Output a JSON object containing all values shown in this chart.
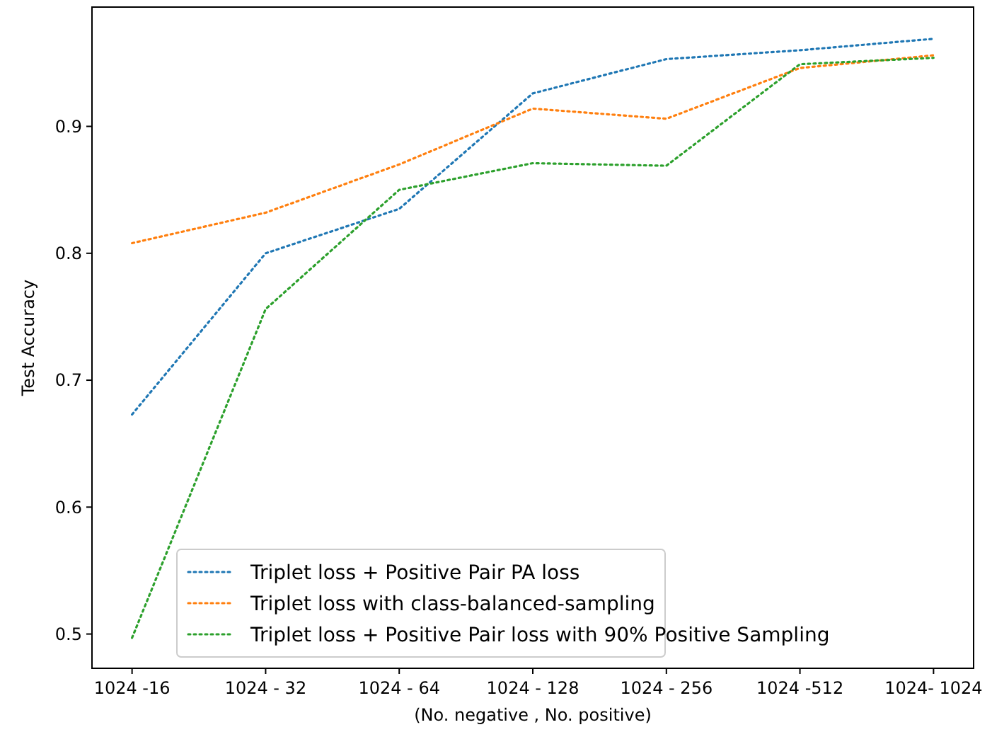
{
  "chart_data": {
    "type": "line",
    "xlabel": "(No. negative , No. positive)",
    "ylabel": "Test Accuracy",
    "categories": [
      "1024 -16",
      "1024 - 32",
      "1024 - 64",
      "1024 - 128",
      "1024 - 256",
      "1024 -512",
      "1024- 1024"
    ],
    "series": [
      {
        "name": "Triplet loss + Positive Pair PA loss",
        "color": "#1f77b4",
        "values": [
          0.673,
          0.8,
          0.835,
          0.926,
          0.953,
          0.96,
          0.969
        ]
      },
      {
        "name": "Triplet loss with class-balanced-sampling",
        "color": "#ff7f0e",
        "values": [
          0.808,
          0.832,
          0.87,
          0.914,
          0.906,
          0.946,
          0.956
        ]
      },
      {
        "name": "Triplet loss + Positive Pair loss with 90% Positive Sampling",
        "color": "#2ca02c",
        "values": [
          0.497,
          0.756,
          0.85,
          0.871,
          0.869,
          0.949,
          0.954
        ]
      }
    ],
    "ylim": [
      0.473,
      0.994
    ],
    "yticks": [
      {
        "value": 0.5,
        "label": "0.5"
      },
      {
        "value": 0.6,
        "label": "0.6"
      },
      {
        "value": 0.7,
        "label": "0.7"
      },
      {
        "value": 0.8,
        "label": "0.8"
      },
      {
        "value": 0.9,
        "label": "0.9"
      }
    ],
    "line_style": "dotted",
    "legend": "bottom right",
    "grid": false
  }
}
